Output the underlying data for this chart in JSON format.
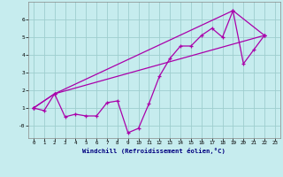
{
  "xlabel": "Windchill (Refroidissement éolien,°C)",
  "bg_color": "#c6ecee",
  "line_color": "#aa00aa",
  "grid_color": "#9ecece",
  "xlim": [
    -0.5,
    23.5
  ],
  "ylim": [
    -0.7,
    7.0
  ],
  "yticks": [
    0,
    1,
    2,
    3,
    4,
    5,
    6
  ],
  "ytick_labels": [
    "-0",
    "1",
    "2",
    "3",
    "4",
    "5",
    "6"
  ],
  "xticks": [
    0,
    1,
    2,
    3,
    4,
    5,
    6,
    7,
    8,
    9,
    10,
    11,
    12,
    13,
    14,
    15,
    16,
    17,
    18,
    19,
    20,
    21,
    22,
    23
  ],
  "line1_x": [
    0,
    1,
    2,
    3,
    4,
    5,
    6,
    7,
    8,
    9,
    10,
    11,
    12,
    13,
    14,
    15,
    16,
    17,
    18,
    19,
    20,
    21,
    22
  ],
  "line1_y": [
    1.0,
    0.85,
    1.8,
    0.5,
    0.65,
    0.55,
    0.55,
    1.3,
    1.4,
    -0.4,
    -0.15,
    1.25,
    2.8,
    3.8,
    4.5,
    4.5,
    5.1,
    5.5,
    5.0,
    6.5,
    3.5,
    4.3,
    5.1
  ],
  "line2_x": [
    0,
    2,
    22
  ],
  "line2_y": [
    1.0,
    1.8,
    5.1
  ],
  "line3_x": [
    0,
    2,
    19,
    22
  ],
  "line3_y": [
    1.0,
    1.8,
    6.5,
    5.1
  ]
}
